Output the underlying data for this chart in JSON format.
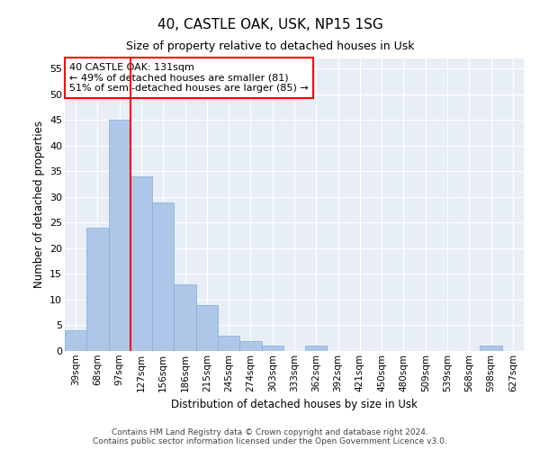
{
  "title": "40, CASTLE OAK, USK, NP15 1SG",
  "subtitle": "Size of property relative to detached houses in Usk",
  "xlabel": "Distribution of detached houses by size in Usk",
  "ylabel": "Number of detached properties",
  "footnote1": "Contains HM Land Registry data © Crown copyright and database right 2024.",
  "footnote2": "Contains public sector information licensed under the Open Government Licence v3.0.",
  "bar_labels": [
    "39sqm",
    "68sqm",
    "97sqm",
    "127sqm",
    "156sqm",
    "186sqm",
    "215sqm",
    "245sqm",
    "274sqm",
    "303sqm",
    "333sqm",
    "362sqm",
    "392sqm",
    "421sqm",
    "450sqm",
    "480sqm",
    "509sqm",
    "539sqm",
    "568sqm",
    "598sqm",
    "627sqm"
  ],
  "bar_values": [
    4,
    24,
    45,
    34,
    29,
    13,
    9,
    3,
    2,
    1,
    0,
    1,
    0,
    0,
    0,
    0,
    0,
    0,
    0,
    1,
    0
  ],
  "bar_color": "#aec6e8",
  "bar_edge_color": "#7aafd4",
  "vline_x": 2.5,
  "vline_color": "red",
  "annotation_line1": "40 CASTLE OAK: 131sqm",
  "annotation_line2": "← 49% of detached houses are smaller (81)",
  "annotation_line3": "51% of semi-detached houses are larger (85) →",
  "annotation_box_color": "white",
  "annotation_box_edge_color": "red",
  "ylim": [
    0,
    57
  ],
  "yticks": [
    0,
    5,
    10,
    15,
    20,
    25,
    30,
    35,
    40,
    45,
    50,
    55
  ],
  "bg_color": "#e8eef6",
  "grid_color": "white",
  "title_fontsize": 11,
  "subtitle_fontsize": 9
}
